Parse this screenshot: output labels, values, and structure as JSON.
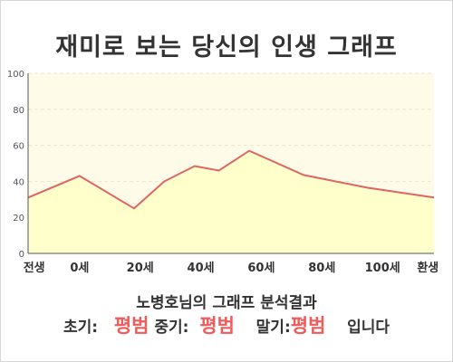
{
  "page": {
    "title": "재미로 보는 당신의 인생 그래프",
    "subtitle": "노병호님의 그래프 분석결과",
    "result": {
      "early_label": "초기:",
      "early_value": "평범",
      "middle_label": "중기:",
      "middle_value": "평범",
      "late_label": "말기:",
      "late_value": "평범",
      "suffix": "입니다"
    }
  },
  "chart_data": {
    "type": "area",
    "title": "",
    "xlabel": "",
    "ylabel": "",
    "categories": [
      "전생",
      "0세",
      "20세",
      "40세",
      "60세",
      "80세",
      "100세",
      "환생"
    ],
    "x_tick_positions": [
      -15,
      0,
      20,
      40,
      60,
      80,
      100,
      115
    ],
    "xlim": [
      -17,
      117
    ],
    "ylim": [
      0,
      100
    ],
    "yticks": [
      "0",
      "20",
      "40",
      "60",
      "80",
      "100"
    ],
    "grid": true,
    "series": [
      {
        "name": "",
        "x": [
          -17,
          0,
          18,
          28,
          38,
          46,
          56,
          74,
          95,
          117
        ],
        "y": [
          31,
          43,
          25,
          40,
          48.5,
          46,
          57,
          43.5,
          36.5,
          31
        ]
      }
    ],
    "colors": {
      "line": "#e06464",
      "fill": "#ffffcc",
      "plot_bg": "#fefce8",
      "grid": "#e6e6cf",
      "highlight": "#f05a5a"
    }
  }
}
